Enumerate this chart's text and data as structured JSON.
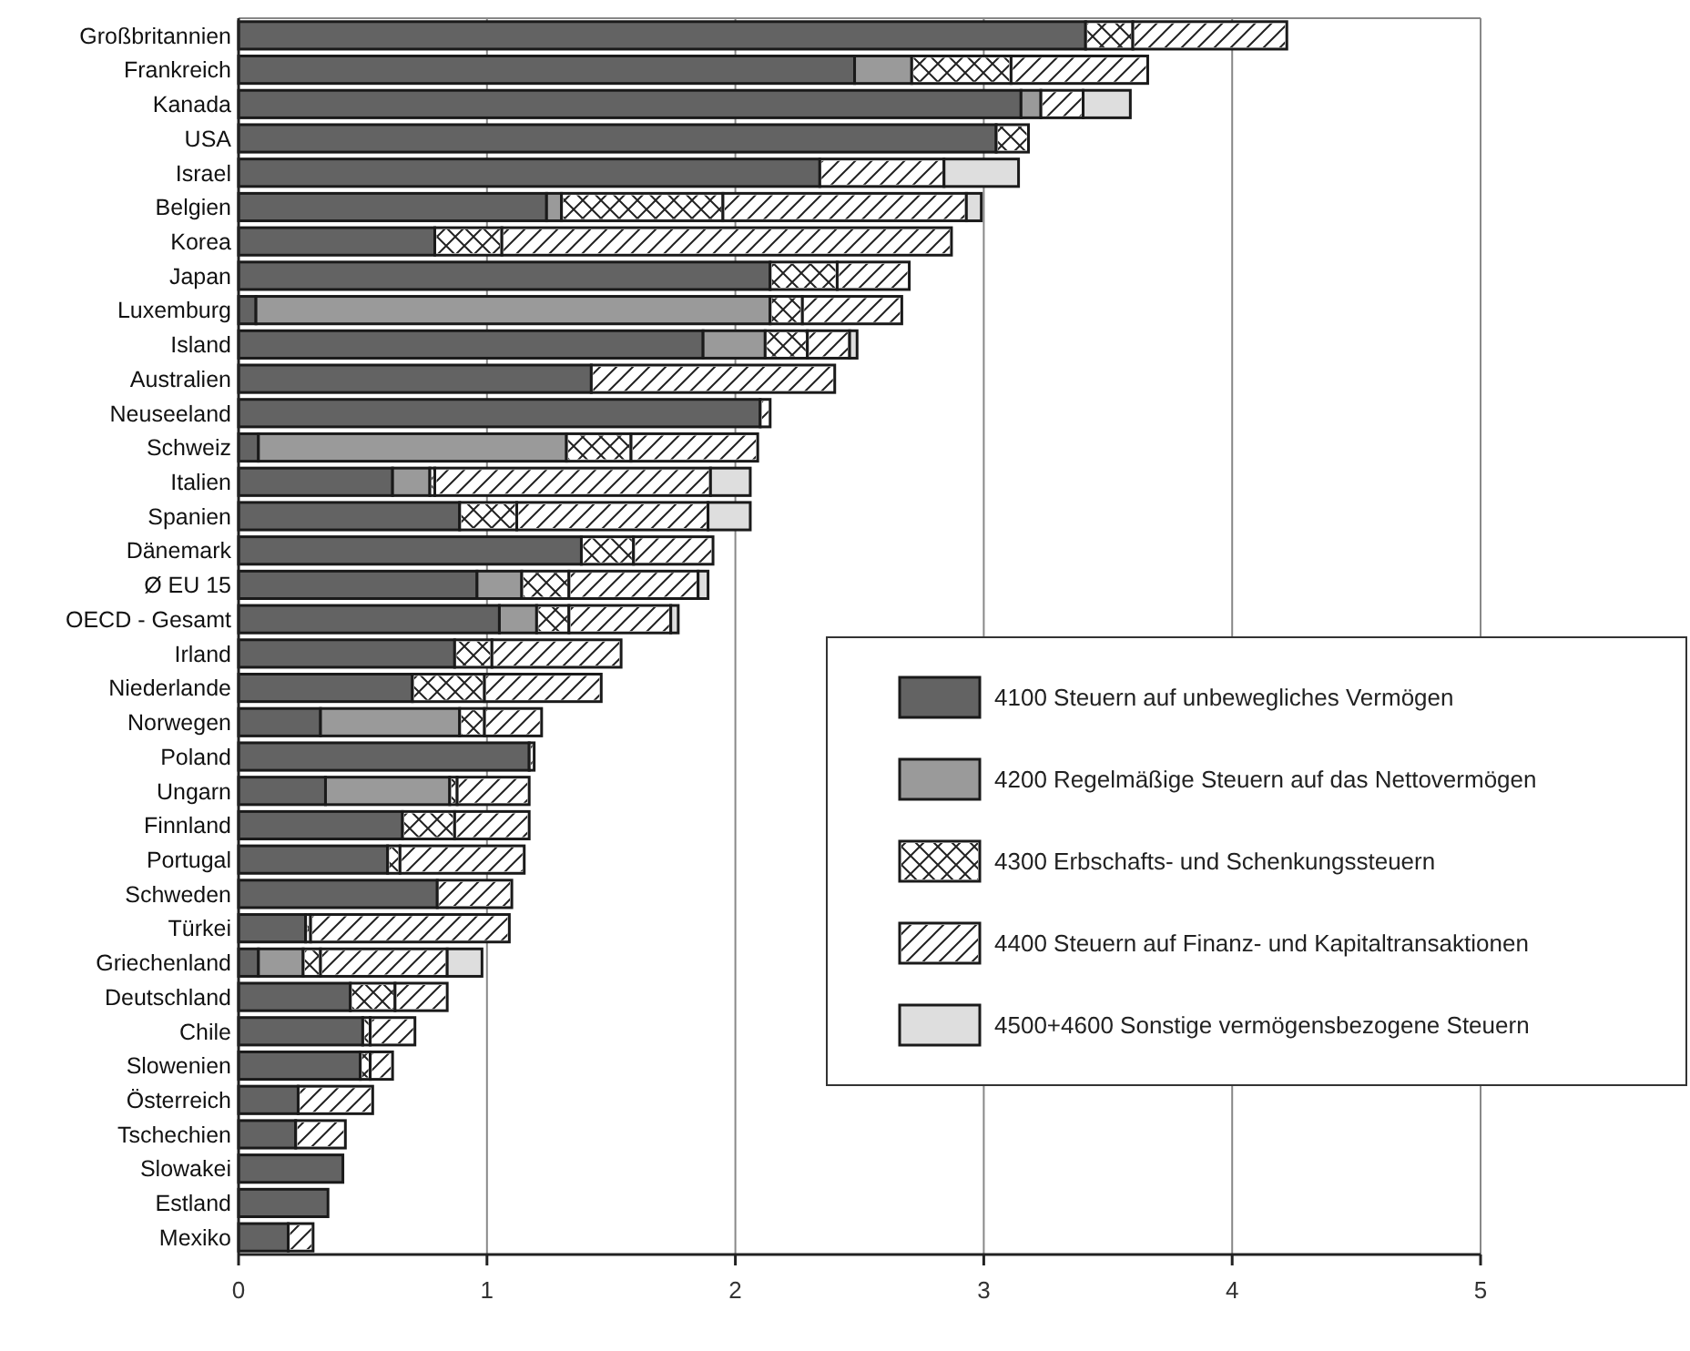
{
  "chart_data": {
    "type": "bar",
    "orientation": "horizontal",
    "stacked": true,
    "categories": [
      "Großbritannien",
      "Frankreich",
      "Kanada",
      "USA",
      "Israel",
      "Belgien",
      "Korea",
      "Japan",
      "Luxemburg",
      "Island",
      "Australien",
      "Neuseeland",
      "Schweiz",
      "Italien",
      "Spanien",
      "Dänemark",
      "Ø EU 15",
      "OECD - Gesamt",
      "Irland",
      "Niederlande",
      "Norwegen",
      "Poland",
      "Ungarn",
      "Finnland",
      "Portugal",
      "Schweden",
      "Türkei",
      "Griechenland",
      "Deutschland",
      "Chile",
      "Slowenien",
      "Österreich",
      "Tschechien",
      "Slowakei",
      "Estland",
      "Mexiko"
    ],
    "series": [
      {
        "name": "4100 Steuern auf unbewegliches Vermögen",
        "color": "#636363",
        "values": [
          3.41,
          2.48,
          3.15,
          3.05,
          2.34,
          1.24,
          0.79,
          2.14,
          0.07,
          1.87,
          1.42,
          2.1,
          0.08,
          0.62,
          0.89,
          1.38,
          0.96,
          1.05,
          0.87,
          0.7,
          0.33,
          1.17,
          0.35,
          0.66,
          0.6,
          0.8,
          0.27,
          0.08,
          0.45,
          0.5,
          0.49,
          0.24,
          0.23,
          0.42,
          0.36,
          0.2
        ]
      },
      {
        "name": "4200 Regelmäßige Steuern auf das Nettovermögen",
        "color": "#9a9a9a",
        "values": [
          null,
          0.23,
          0.08,
          null,
          null,
          0.06,
          null,
          null,
          2.07,
          0.25,
          null,
          null,
          1.24,
          0.15,
          null,
          null,
          0.18,
          0.15,
          null,
          null,
          0.56,
          null,
          0.5,
          null,
          null,
          null,
          null,
          0.18,
          null,
          null,
          null,
          null,
          null,
          null,
          null,
          null
        ]
      },
      {
        "name": "4300 Erbschafts- und Schenkungssteuern",
        "color": "#ffffff",
        "values": [
          0.19,
          0.4,
          null,
          0.13,
          null,
          0.65,
          0.27,
          0.27,
          0.13,
          0.17,
          null,
          null,
          0.26,
          0.02,
          0.23,
          0.21,
          0.19,
          0.13,
          0.15,
          0.29,
          0.1,
          null,
          0.03,
          0.21,
          0.05,
          null,
          0.02,
          0.07,
          0.18,
          0.03,
          0.04,
          null,
          null,
          null,
          null,
          null
        ]
      },
      {
        "name": "4400 Steuern auf Finanz- und Kapitaltransaktionen",
        "color": "#ffffff",
        "values": [
          0.62,
          0.55,
          0.17,
          null,
          0.5,
          0.98,
          1.81,
          0.29,
          0.4,
          0.17,
          0.98,
          0.04,
          0.51,
          1.11,
          0.77,
          0.32,
          0.52,
          0.41,
          0.52,
          0.47,
          0.23,
          0.02,
          0.29,
          0.3,
          0.5,
          0.3,
          0.8,
          0.51,
          0.21,
          0.18,
          0.09,
          0.3,
          0.2,
          null,
          null,
          0.1
        ]
      },
      {
        "name": "4500+4600 Sonstige vermögensbezogene Steuern",
        "color": "#dedede",
        "values": [
          null,
          null,
          0.19,
          null,
          0.3,
          0.06,
          null,
          null,
          null,
          0.03,
          null,
          null,
          null,
          0.16,
          0.17,
          null,
          0.04,
          0.03,
          null,
          null,
          null,
          null,
          null,
          null,
          null,
          null,
          null,
          0.14,
          null,
          null,
          null,
          null,
          null,
          null,
          null,
          null
        ]
      }
    ],
    "xlim": [
      0,
      5
    ],
    "xticks": [
      0,
      1,
      2,
      3,
      4,
      5
    ],
    "grid": "x",
    "legend": "bottom right"
  }
}
